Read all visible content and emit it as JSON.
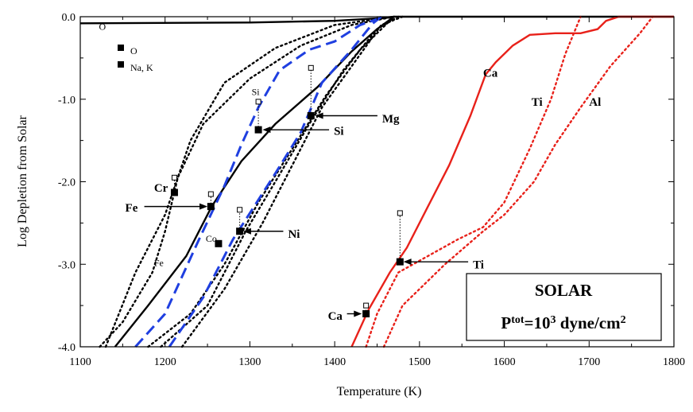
{
  "chart_data": {
    "type": "line",
    "title": "",
    "xlabel": "Temperature (K)",
    "ylabel": "Log Depletion from Solar",
    "xlim": [
      1100,
      1800
    ],
    "ylim": [
      -4.0,
      0.0
    ],
    "x_ticks": [
      "1100",
      "1200",
      "1300",
      "1400",
      "1500",
      "1600",
      "1700",
      "1800"
    ],
    "y_ticks": [
      "0.0",
      "-1.0",
      "-2.0",
      "-3.0",
      "-4.0"
    ],
    "box": {
      "line1": "SOLAR",
      "line2_prefix": "P",
      "line2_sup": "tot",
      "line2_mid": "=10",
      "line2_sup2": "3",
      "line2_suffix": " dyne/cm",
      "line2_sup3": "2"
    },
    "legend": [
      {
        "label": "O"
      },
      {
        "label": "Na, K"
      }
    ],
    "series": [
      {
        "name": "O",
        "color": "#000000",
        "style": "solid",
        "points": [
          [
            1100,
            -0.08
          ],
          [
            1300,
            -0.07
          ],
          [
            1400,
            -0.05
          ],
          [
            1450,
            -0.02
          ],
          [
            1470,
            0.0
          ],
          [
            1800,
            0.0
          ]
        ]
      },
      {
        "name": "Fe",
        "color": "#000000",
        "style": "solid",
        "points": [
          [
            1141,
            -4.0
          ],
          [
            1180,
            -3.5
          ],
          [
            1225,
            -2.9
          ],
          [
            1255,
            -2.3
          ],
          [
            1290,
            -1.75
          ],
          [
            1330,
            -1.3
          ],
          [
            1380,
            -0.85
          ],
          [
            1420,
            -0.42
          ],
          [
            1450,
            -0.15
          ],
          [
            1470,
            0.0
          ]
        ]
      },
      {
        "name": "Fe",
        "color": "#000000",
        "style": "dotted",
        "points": [
          [
            1123,
            -4.0
          ],
          [
            1150,
            -3.7
          ],
          [
            1185,
            -3.1
          ],
          [
            1200,
            -2.6
          ],
          [
            1215,
            -1.95
          ],
          [
            1245,
            -1.3
          ],
          [
            1300,
            -0.75
          ],
          [
            1360,
            -0.35
          ],
          [
            1420,
            -0.1
          ],
          [
            1470,
            0.0
          ]
        ]
      },
      {
        "name": "Cr",
        "color": "#000000",
        "style": "dotted",
        "points": [
          [
            1130,
            -4.0
          ],
          [
            1165,
            -3.1
          ],
          [
            1200,
            -2.4
          ],
          [
            1230,
            -1.5
          ],
          [
            1270,
            -0.8
          ],
          [
            1330,
            -0.38
          ],
          [
            1400,
            -0.1
          ],
          [
            1470,
            0.0
          ]
        ]
      },
      {
        "name": "Co",
        "color": "#000000",
        "style": "dotted",
        "points": [
          [
            1180,
            -4.0
          ],
          [
            1230,
            -3.6
          ],
          [
            1270,
            -3.0
          ],
          [
            1310,
            -2.25
          ],
          [
            1350,
            -1.6
          ],
          [
            1390,
            -0.95
          ],
          [
            1430,
            -0.4
          ],
          [
            1470,
            0.0
          ]
        ]
      },
      {
        "name": "Ni",
        "color": "#000000",
        "style": "dotted",
        "points": [
          [
            1195,
            -4.0
          ],
          [
            1250,
            -3.5
          ],
          [
            1295,
            -2.6
          ],
          [
            1330,
            -2.0
          ],
          [
            1370,
            -1.3
          ],
          [
            1410,
            -0.65
          ],
          [
            1450,
            -0.15
          ],
          [
            1475,
            0.0
          ]
        ]
      },
      {
        "name": "Mg",
        "color": "#000000",
        "style": "dotted",
        "points": [
          [
            1220,
            -4.0
          ],
          [
            1270,
            -3.3
          ],
          [
            1315,
            -2.5
          ],
          [
            1350,
            -1.8
          ],
          [
            1385,
            -1.1
          ],
          [
            1420,
            -0.6
          ],
          [
            1455,
            -0.1
          ],
          [
            1480,
            0.0
          ]
        ]
      },
      {
        "name": "Si",
        "color": "#1f3fe0",
        "style": "dashed",
        "points": [
          [
            1165,
            -4.0
          ],
          [
            1200,
            -3.6
          ],
          [
            1240,
            -2.7
          ],
          [
            1270,
            -2.05
          ],
          [
            1290,
            -1.55
          ],
          [
            1310,
            -1.1
          ],
          [
            1335,
            -0.65
          ],
          [
            1370,
            -0.4
          ],
          [
            1400,
            -0.3
          ],
          [
            1430,
            -0.1
          ],
          [
            1450,
            -0.03
          ]
        ]
      },
      {
        "name": "Mg",
        "color": "#1f3fe0",
        "style": "dashed",
        "points": [
          [
            1205,
            -4.0
          ],
          [
            1245,
            -3.4
          ],
          [
            1280,
            -2.7
          ],
          [
            1305,
            -2.3
          ],
          [
            1330,
            -1.9
          ],
          [
            1360,
            -1.4
          ],
          [
            1385,
            -0.8
          ],
          [
            1420,
            -0.4
          ],
          [
            1445,
            -0.08
          ],
          [
            1455,
            0.0
          ]
        ]
      },
      {
        "name": "Ca",
        "color": "#e8211a",
        "style": "solid",
        "points": [
          [
            1420,
            -4.0
          ],
          [
            1440,
            -3.55
          ],
          [
            1465,
            -3.1
          ],
          [
            1485,
            -2.8
          ],
          [
            1510,
            -2.3
          ],
          [
            1535,
            -1.8
          ],
          [
            1560,
            -1.2
          ],
          [
            1578,
            -0.7
          ],
          [
            1590,
            -0.55
          ],
          [
            1610,
            -0.35
          ],
          [
            1630,
            -0.22
          ],
          [
            1660,
            -0.2
          ],
          [
            1690,
            -0.2
          ],
          [
            1710,
            -0.15
          ],
          [
            1720,
            -0.05
          ],
          [
            1735,
            0.0
          ],
          [
            1800,
            0.0
          ]
        ]
      },
      {
        "name": "Ti",
        "color": "#e8211a",
        "style": "dotted",
        "points": [
          [
            1437,
            -4.0
          ],
          [
            1450,
            -3.6
          ],
          [
            1475,
            -3.1
          ],
          [
            1510,
            -2.9
          ],
          [
            1545,
            -2.7
          ],
          [
            1575,
            -2.55
          ],
          [
            1600,
            -2.25
          ],
          [
            1630,
            -1.6
          ],
          [
            1655,
            -1.0
          ],
          [
            1672,
            -0.45
          ],
          [
            1690,
            0.0
          ]
        ]
      },
      {
        "name": "Al",
        "color": "#e8211a",
        "style": "dotted",
        "points": [
          [
            1458,
            -4.0
          ],
          [
            1480,
            -3.5
          ],
          [
            1500,
            -3.3
          ],
          [
            1530,
            -3.0
          ],
          [
            1575,
            -2.6
          ],
          [
            1600,
            -2.4
          ],
          [
            1635,
            -2.0
          ],
          [
            1660,
            -1.55
          ],
          [
            1690,
            -1.1
          ],
          [
            1725,
            -0.6
          ],
          [
            1760,
            -0.2
          ],
          [
            1775,
            0.0
          ]
        ]
      }
    ],
    "markers": [
      {
        "label": "Cr",
        "x": 1211,
        "y": -2.13,
        "open_y": -1.95
      },
      {
        "label": "Fe",
        "x": 1254,
        "y": -2.3,
        "open_y": -2.15
      },
      {
        "label": "Co",
        "x": 1263,
        "y": -2.75,
        "open_y": null
      },
      {
        "label": "Ni",
        "x": 1288,
        "y": -2.6,
        "open_y": -2.34
      },
      {
        "label": "Si",
        "x": 1310,
        "y": -1.37,
        "open_y": -1.03
      },
      {
        "label": "Mg",
        "x": 1372,
        "y": -1.2,
        "open_y": -0.62
      },
      {
        "label": "Ti",
        "x": 1477,
        "y": -2.97,
        "open_y": -2.38
      },
      {
        "label": "Ca",
        "x": 1437,
        "y": -3.6,
        "open_y": -3.5
      }
    ],
    "annotations": [
      {
        "text": "O",
        "x": 1122,
        "y": -0.16,
        "size": "small"
      },
      {
        "text": "Si",
        "x": 1302,
        "y": -0.95,
        "size": "small"
      },
      {
        "text": "Fe",
        "x": 1187,
        "y": -3.02,
        "size": "small"
      },
      {
        "text": "Co",
        "x": 1248,
        "y": -2.73,
        "size": "small"
      },
      {
        "text": "Ca",
        "x": 1575,
        "y": -0.73,
        "size": "bold"
      },
      {
        "text": "Ti",
        "x": 1632,
        "y": -1.08,
        "size": "bold"
      },
      {
        "text": "Al",
        "x": 1700,
        "y": -1.08,
        "size": "bold"
      }
    ],
    "arrow_labels": [
      {
        "text": "Cr",
        "x": 1187,
        "y": -2.12,
        "arrow": false
      },
      {
        "text": "Fe",
        "x": 1153,
        "y": -2.36,
        "arrow": true,
        "to": [
          1250,
          -2.3
        ]
      },
      {
        "text": "Ni",
        "x": 1345,
        "y": -2.68,
        "arrow": true,
        "to": [
          1292,
          -2.6
        ]
      },
      {
        "text": "Si",
        "x": 1399,
        "y": -1.43,
        "arrow": true,
        "to": [
          1315,
          -1.37
        ]
      },
      {
        "text": "Mg",
        "x": 1456,
        "y": -1.28,
        "arrow": true,
        "to": [
          1377,
          -1.2
        ]
      },
      {
        "text": "Ti",
        "x": 1563,
        "y": -3.05,
        "arrow": true,
        "to": [
          1481,
          -2.97
        ]
      },
      {
        "text": "Ca",
        "x": 1392,
        "y": -3.67,
        "arrow": true,
        "to": [
          1432,
          -3.6
        ]
      }
    ]
  }
}
